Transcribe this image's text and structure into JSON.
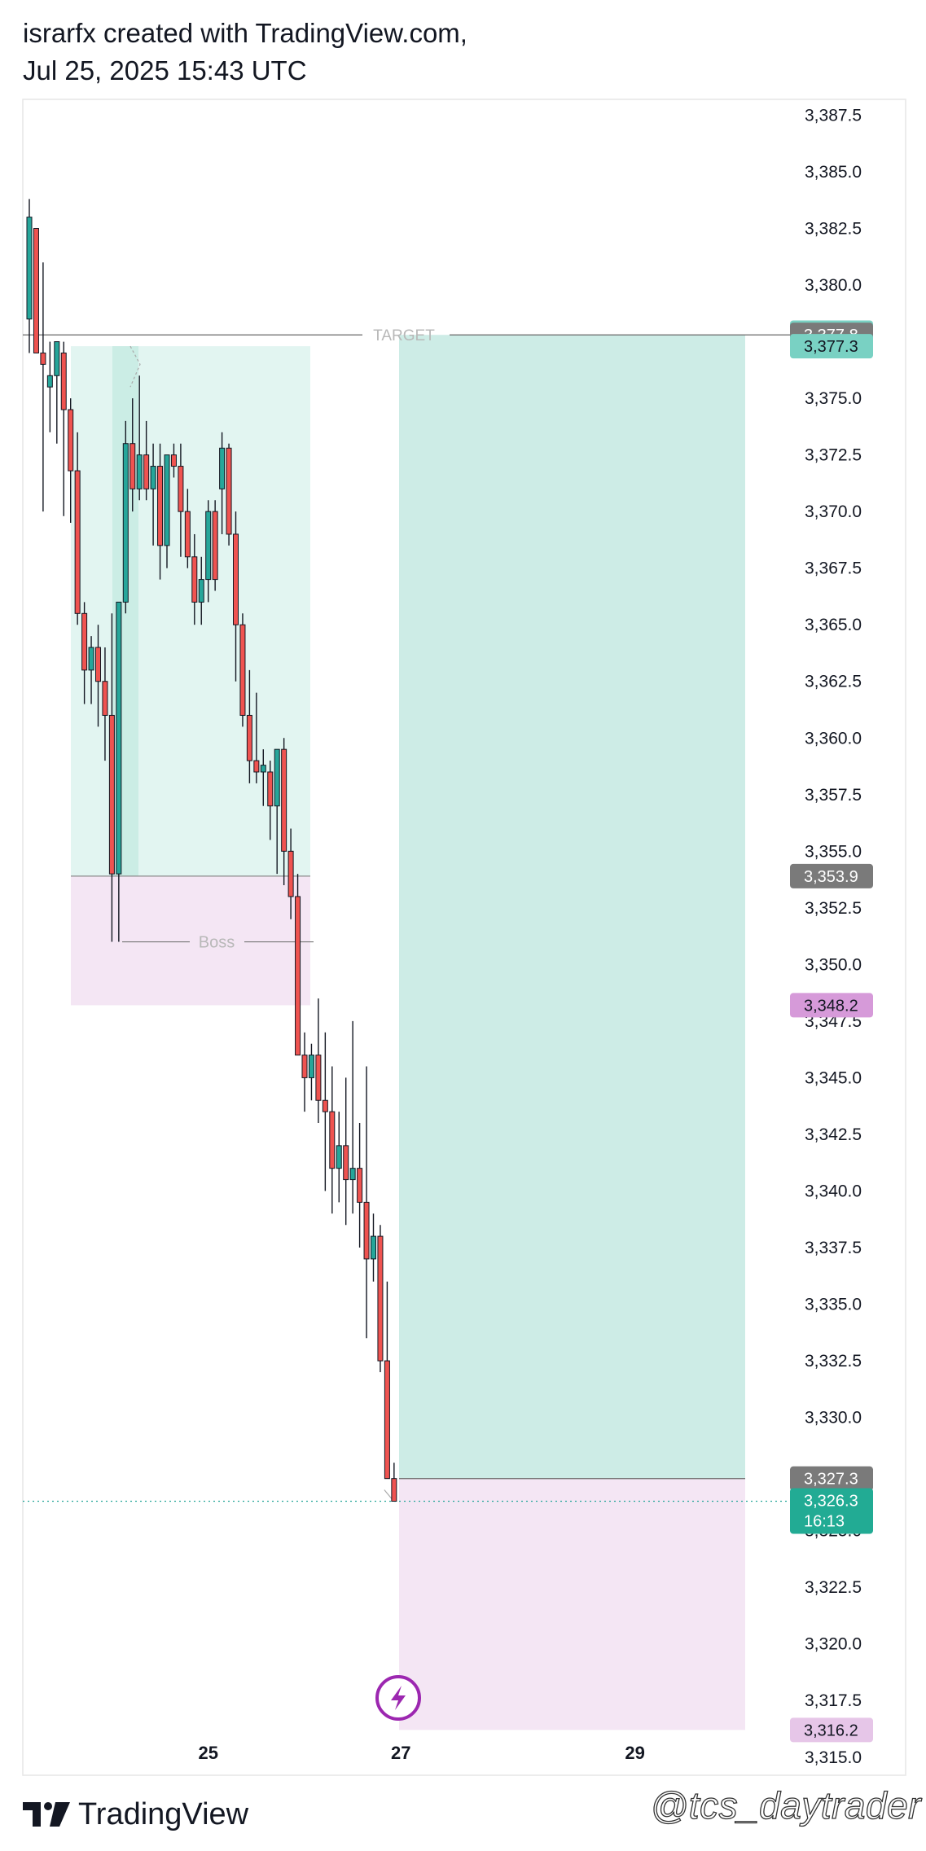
{
  "header": {
    "line1": "israrfx created with TradingView.com,",
    "line2": "Jul 25, 2025 15:43 UTC"
  },
  "footer": {
    "brand": "TradingView",
    "watermark": "@tcs_daytrader"
  },
  "chart_data": {
    "type": "candlestick",
    "title": "",
    "ylim": [
      3314.2,
      3388.2
    ],
    "y_ticks": [
      "3,387.5",
      "3,385.0",
      "3,382.5",
      "3,380.0",
      "3,377.5",
      "3,375.0",
      "3,372.5",
      "3,370.0",
      "3,367.5",
      "3,365.0",
      "3,362.5",
      "3,360.0",
      "3,357.5",
      "3,355.0",
      "3,352.5",
      "3,350.0",
      "3,347.5",
      "3,345.0",
      "3,342.5",
      "3,340.0",
      "3,337.5",
      "3,335.0",
      "3,332.5",
      "3,330.0",
      "3,327.5",
      "3,325.0",
      "3,322.5",
      "3,320.0",
      "3,317.5",
      "3,315.0"
    ],
    "y_tick_values": [
      3387.5,
      3385.0,
      3382.5,
      3380.0,
      3377.5,
      3375.0,
      3372.5,
      3370.0,
      3367.5,
      3365.0,
      3362.5,
      3360.0,
      3357.5,
      3355.0,
      3352.5,
      3350.0,
      3347.5,
      3345.0,
      3342.5,
      3340.0,
      3337.5,
      3335.0,
      3332.5,
      3330.0,
      3327.5,
      3325.0,
      3322.5,
      3320.0,
      3317.5,
      3315.0
    ],
    "x_ticks": [
      {
        "label": "25",
        "bar": 26
      },
      {
        "label": "27",
        "bar": 54
      },
      {
        "label": "29",
        "bar": 88
      }
    ],
    "candles": [
      {
        "o": 3378.5,
        "h": 3383.8,
        "l": 3377.0,
        "c": 3383.0
      },
      {
        "o": 3382.5,
        "h": 3382.5,
        "l": 3377.5,
        "c": 3377.0
      },
      {
        "o": 3377.0,
        "h": 3381.0,
        "l": 3370.0,
        "c": 3376.5
      },
      {
        "o": 3375.5,
        "h": 3377.5,
        "l": 3373.5,
        "c": 3376.0
      },
      {
        "o": 3376.0,
        "h": 3377.2,
        "l": 3373.0,
        "c": 3377.5
      },
      {
        "o": 3377.0,
        "h": 3377.5,
        "l": 3369.8,
        "c": 3374.5
      },
      {
        "o": 3374.5,
        "h": 3375.0,
        "l": 3369.5,
        "c": 3371.8
      },
      {
        "o": 3371.8,
        "h": 3373.5,
        "l": 3365.0,
        "c": 3365.5
      },
      {
        "o": 3365.5,
        "h": 3366.0,
        "l": 3361.5,
        "c": 3363.0
      },
      {
        "o": 3363.0,
        "h": 3364.5,
        "l": 3361.5,
        "c": 3364.0
      },
      {
        "o": 3364.0,
        "h": 3365.0,
        "l": 3360.5,
        "c": 3362.5
      },
      {
        "o": 3362.5,
        "h": 3364.0,
        "l": 3359.0,
        "c": 3361.0
      },
      {
        "o": 3361.0,
        "h": 3365.5,
        "l": 3351.0,
        "c": 3354.0
      },
      {
        "o": 3354.0,
        "h": 3366.0,
        "l": 3351.0,
        "c": 3366.0
      },
      {
        "o": 3366.0,
        "h": 3374.0,
        "l": 3365.5,
        "c": 3373.0
      },
      {
        "o": 3373.0,
        "h": 3375.0,
        "l": 3370.0,
        "c": 3371.0
      },
      {
        "o": 3371.0,
        "h": 3376.0,
        "l": 3370.5,
        "c": 3372.5
      },
      {
        "o": 3372.5,
        "h": 3374.0,
        "l": 3370.5,
        "c": 3371.0
      },
      {
        "o": 3371.0,
        "h": 3373.0,
        "l": 3368.5,
        "c": 3372.0
      },
      {
        "o": 3372.0,
        "h": 3373.0,
        "l": 3367.0,
        "c": 3368.5
      },
      {
        "o": 3368.5,
        "h": 3372.0,
        "l": 3367.5,
        "c": 3372.5
      },
      {
        "o": 3372.5,
        "h": 3373.0,
        "l": 3371.5,
        "c": 3372.0
      },
      {
        "o": 3372.0,
        "h": 3373.0,
        "l": 3368.0,
        "c": 3370.0
      },
      {
        "o": 3370.0,
        "h": 3371.0,
        "l": 3367.5,
        "c": 3368.0
      },
      {
        "o": 3368.0,
        "h": 3369.0,
        "l": 3365.0,
        "c": 3366.0
      },
      {
        "o": 3366.0,
        "h": 3368.0,
        "l": 3365.0,
        "c": 3367.0
      },
      {
        "o": 3367.0,
        "h": 3370.5,
        "l": 3366.0,
        "c": 3370.0
      },
      {
        "o": 3370.0,
        "h": 3370.5,
        "l": 3366.5,
        "c": 3367.0
      },
      {
        "o": 3371.0,
        "h": 3373.5,
        "l": 3369.0,
        "c": 3372.8
      },
      {
        "o": 3372.8,
        "h": 3373.0,
        "l": 3368.5,
        "c": 3369.0
      },
      {
        "o": 3369.0,
        "h": 3370.0,
        "l": 3362.5,
        "c": 3365.0
      },
      {
        "o": 3365.0,
        "h": 3365.5,
        "l": 3360.5,
        "c": 3361.0
      },
      {
        "o": 3361.0,
        "h": 3363.0,
        "l": 3358.0,
        "c": 3359.0
      },
      {
        "o": 3359.0,
        "h": 3362.0,
        "l": 3358.0,
        "c": 3358.5
      },
      {
        "o": 3358.5,
        "h": 3359.5,
        "l": 3357.0,
        "c": 3358.8
      },
      {
        "o": 3358.5,
        "h": 3359.0,
        "l": 3355.5,
        "c": 3357.0
      },
      {
        "o": 3357.0,
        "h": 3359.5,
        "l": 3354.0,
        "c": 3359.5
      },
      {
        "o": 3359.5,
        "h": 3360.0,
        "l": 3353.5,
        "c": 3355.0
      },
      {
        "o": 3355.0,
        "h": 3356.0,
        "l": 3352.0,
        "c": 3353.0
      },
      {
        "o": 3353.0,
        "h": 3354.0,
        "l": 3346.5,
        "c": 3346.0
      },
      {
        "o": 3346.0,
        "h": 3347.0,
        "l": 3343.5,
        "c": 3345.0
      },
      {
        "o": 3345.0,
        "h": 3346.5,
        "l": 3344.0,
        "c": 3346.0
      },
      {
        "o": 3346.0,
        "h": 3348.5,
        "l": 3343.0,
        "c": 3344.0
      },
      {
        "o": 3344.0,
        "h": 3347.0,
        "l": 3340.0,
        "c": 3343.5
      },
      {
        "o": 3343.5,
        "h": 3345.5,
        "l": 3339.0,
        "c": 3341.0
      },
      {
        "o": 3341.0,
        "h": 3343.5,
        "l": 3339.5,
        "c": 3342.0
      },
      {
        "o": 3342.0,
        "h": 3345.0,
        "l": 3338.5,
        "c": 3340.5
      },
      {
        "o": 3340.5,
        "h": 3347.5,
        "l": 3339.0,
        "c": 3341.0
      },
      {
        "o": 3341.0,
        "h": 3343.0,
        "l": 3337.5,
        "c": 3339.5
      },
      {
        "o": 3339.5,
        "h": 3345.5,
        "l": 3333.5,
        "c": 3337.0
      },
      {
        "o": 3337.0,
        "h": 3339.0,
        "l": 3336.0,
        "c": 3338.0
      },
      {
        "o": 3338.0,
        "h": 3338.5,
        "l": 3332.0,
        "c": 3332.5
      },
      {
        "o": 3332.5,
        "h": 3336.0,
        "l": 3327.5,
        "c": 3327.3
      },
      {
        "o": 3327.3,
        "h": 3328.0,
        "l": 3326.3,
        "c": 3326.3
      }
    ],
    "colors": {
      "up_body": "#26a69a",
      "down_body": "#ef5350",
      "body_border": "#131722",
      "target_zone": "#cdece6",
      "stop_zone": "#f4e6f4",
      "demand_zone": "#e2f5f1",
      "demand_zone_dark": "#cbede5",
      "boss_zone": "#f4e6f4",
      "price_line": "#26a69a",
      "label_gray": "#7a7a7a",
      "label_teal_light": "#79d1c3",
      "label_teal": "#22ab94",
      "label_purple": "#d69ad9",
      "label_purple_light": "#e6c6e8",
      "lightning": "#9c27b0"
    },
    "annotations": {
      "target_text": "TARGET",
      "target_price": 3377.8,
      "boss_text": "Boss",
      "boss_price": 3351.0,
      "demand_top": 3377.3,
      "demand_bottom": 3353.9,
      "boss_zone_bottom": 3348.2,
      "entry_price": 3327.3,
      "target_zone_top": 3377.8,
      "stop_zone_bottom": 3316.2
    },
    "price_labels": [
      {
        "text": "3,377.9",
        "value": 3377.9,
        "style": "teal_light"
      },
      {
        "text": "3,377.8",
        "value": 3377.8,
        "style": "gray"
      },
      {
        "text": "3,377.3",
        "value": 3377.3,
        "style": "teal_light"
      },
      {
        "text": "3,353.9",
        "value": 3353.9,
        "style": "gray"
      },
      {
        "text": "3,348.2",
        "value": 3348.2,
        "style": "purple"
      },
      {
        "text": "3,327.3",
        "value": 3327.3,
        "style": "gray"
      },
      {
        "text": "3,326.3",
        "subtext": "16:13",
        "value": 3326.3,
        "style": "teal"
      },
      {
        "text": "3,316.2",
        "value": 3316.2,
        "style": "purple_light"
      }
    ]
  }
}
